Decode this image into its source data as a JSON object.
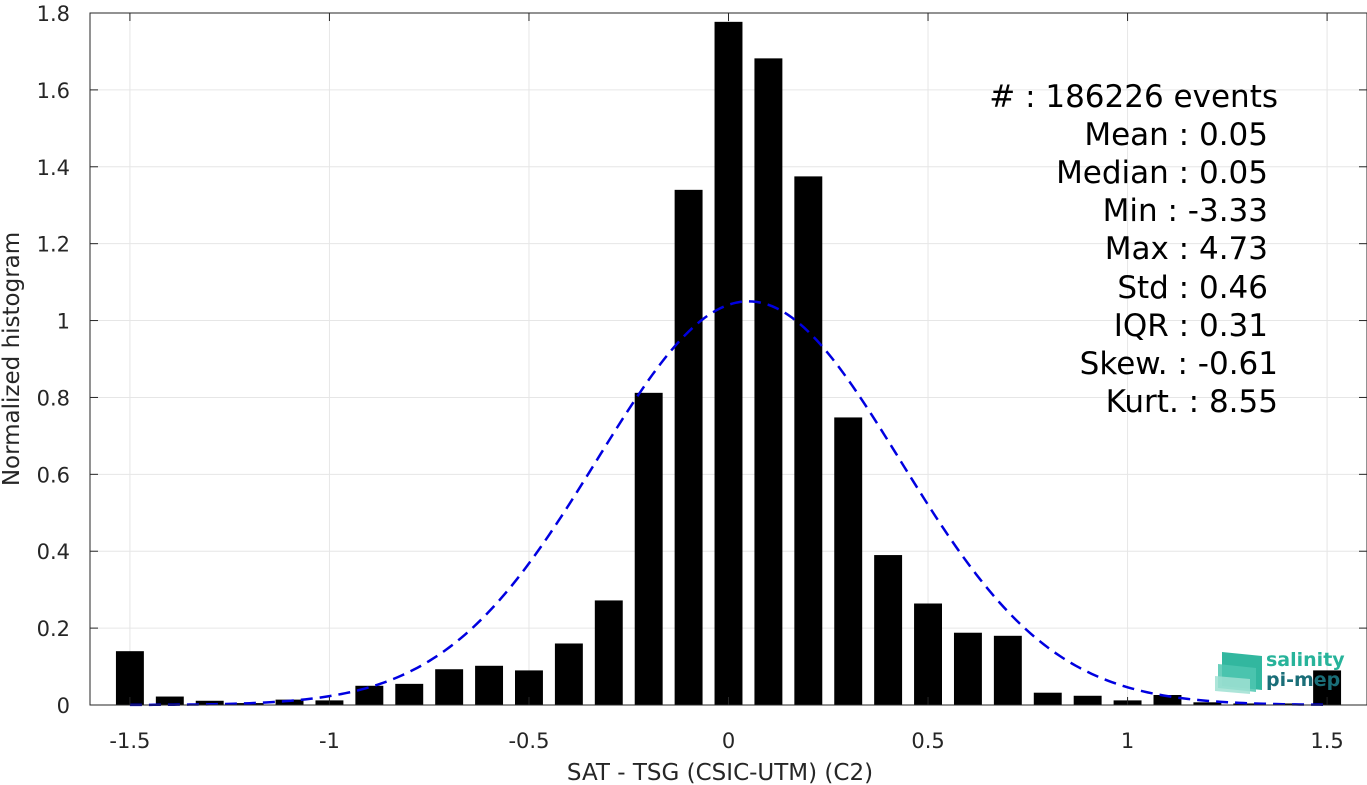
{
  "chart_data": {
    "type": "bar",
    "xlabel": "SAT - TSG (CSIC-UTM) (C2)",
    "ylabel": "Normalized histogram",
    "xlim": [
      -1.6,
      1.6
    ],
    "ylim": [
      0,
      1.8
    ],
    "xticks": [
      "-1.5",
      "-1",
      "-0.5",
      "0",
      "0.5",
      "1",
      "1.5"
    ],
    "yticks": [
      "0",
      "0.2",
      "0.4",
      "0.6",
      "0.8",
      "1",
      "1.2",
      "1.4",
      "1.6",
      "1.8"
    ],
    "grid": true,
    "bar_width": 0.07,
    "bins": [
      {
        "x": -1.5,
        "value": 0.14
      },
      {
        "x": -1.4,
        "value": 0.022
      },
      {
        "x": -1.3,
        "value": 0.011
      },
      {
        "x": -1.2,
        "value": 0.005
      },
      {
        "x": -1.1,
        "value": 0.014
      },
      {
        "x": -1.0,
        "value": 0.012
      },
      {
        "x": -0.9,
        "value": 0.05
      },
      {
        "x": -0.8,
        "value": 0.055
      },
      {
        "x": -0.7,
        "value": 0.093
      },
      {
        "x": -0.6,
        "value": 0.102
      },
      {
        "x": -0.5,
        "value": 0.09
      },
      {
        "x": -0.4,
        "value": 0.16
      },
      {
        "x": -0.3,
        "value": 0.272
      },
      {
        "x": -0.2,
        "value": 0.812
      },
      {
        "x": -0.1,
        "value": 1.34
      },
      {
        "x": 0.0,
        "value": 1.777
      },
      {
        "x": 0.1,
        "value": 1.682
      },
      {
        "x": 0.2,
        "value": 1.375
      },
      {
        "x": 0.3,
        "value": 0.748
      },
      {
        "x": 0.4,
        "value": 0.39
      },
      {
        "x": 0.5,
        "value": 0.264
      },
      {
        "x": 0.6,
        "value": 0.188
      },
      {
        "x": 0.7,
        "value": 0.18
      },
      {
        "x": 0.8,
        "value": 0.032
      },
      {
        "x": 0.9,
        "value": 0.024
      },
      {
        "x": 1.0,
        "value": 0.012
      },
      {
        "x": 1.1,
        "value": 0.026
      },
      {
        "x": 1.2,
        "value": 0.007
      },
      {
        "x": 1.3,
        "value": 0.004
      },
      {
        "x": 1.4,
        "value": 0.004
      },
      {
        "x": 1.5,
        "value": 0.09
      }
    ],
    "bar_color": "#000000",
    "fit_curve": {
      "type": "gaussian",
      "mean": 0.05,
      "std": 0.38,
      "peak": 1.05,
      "color": "#0000e0",
      "style": "dashed"
    },
    "stats": [
      "#  : 186226 events",
      "Mean : 0.05",
      "Median : 0.05",
      "Min : -3.33",
      "Max : 4.73",
      "Std : 0.46",
      "IQR : 0.31",
      "Skew. : -0.61",
      "Kurt. : 8.55"
    ]
  },
  "logo": {
    "line1": "salinity",
    "line2": "pi-mep",
    "color_top": "#27b39a",
    "color_bottom": "#1a6e78"
  }
}
